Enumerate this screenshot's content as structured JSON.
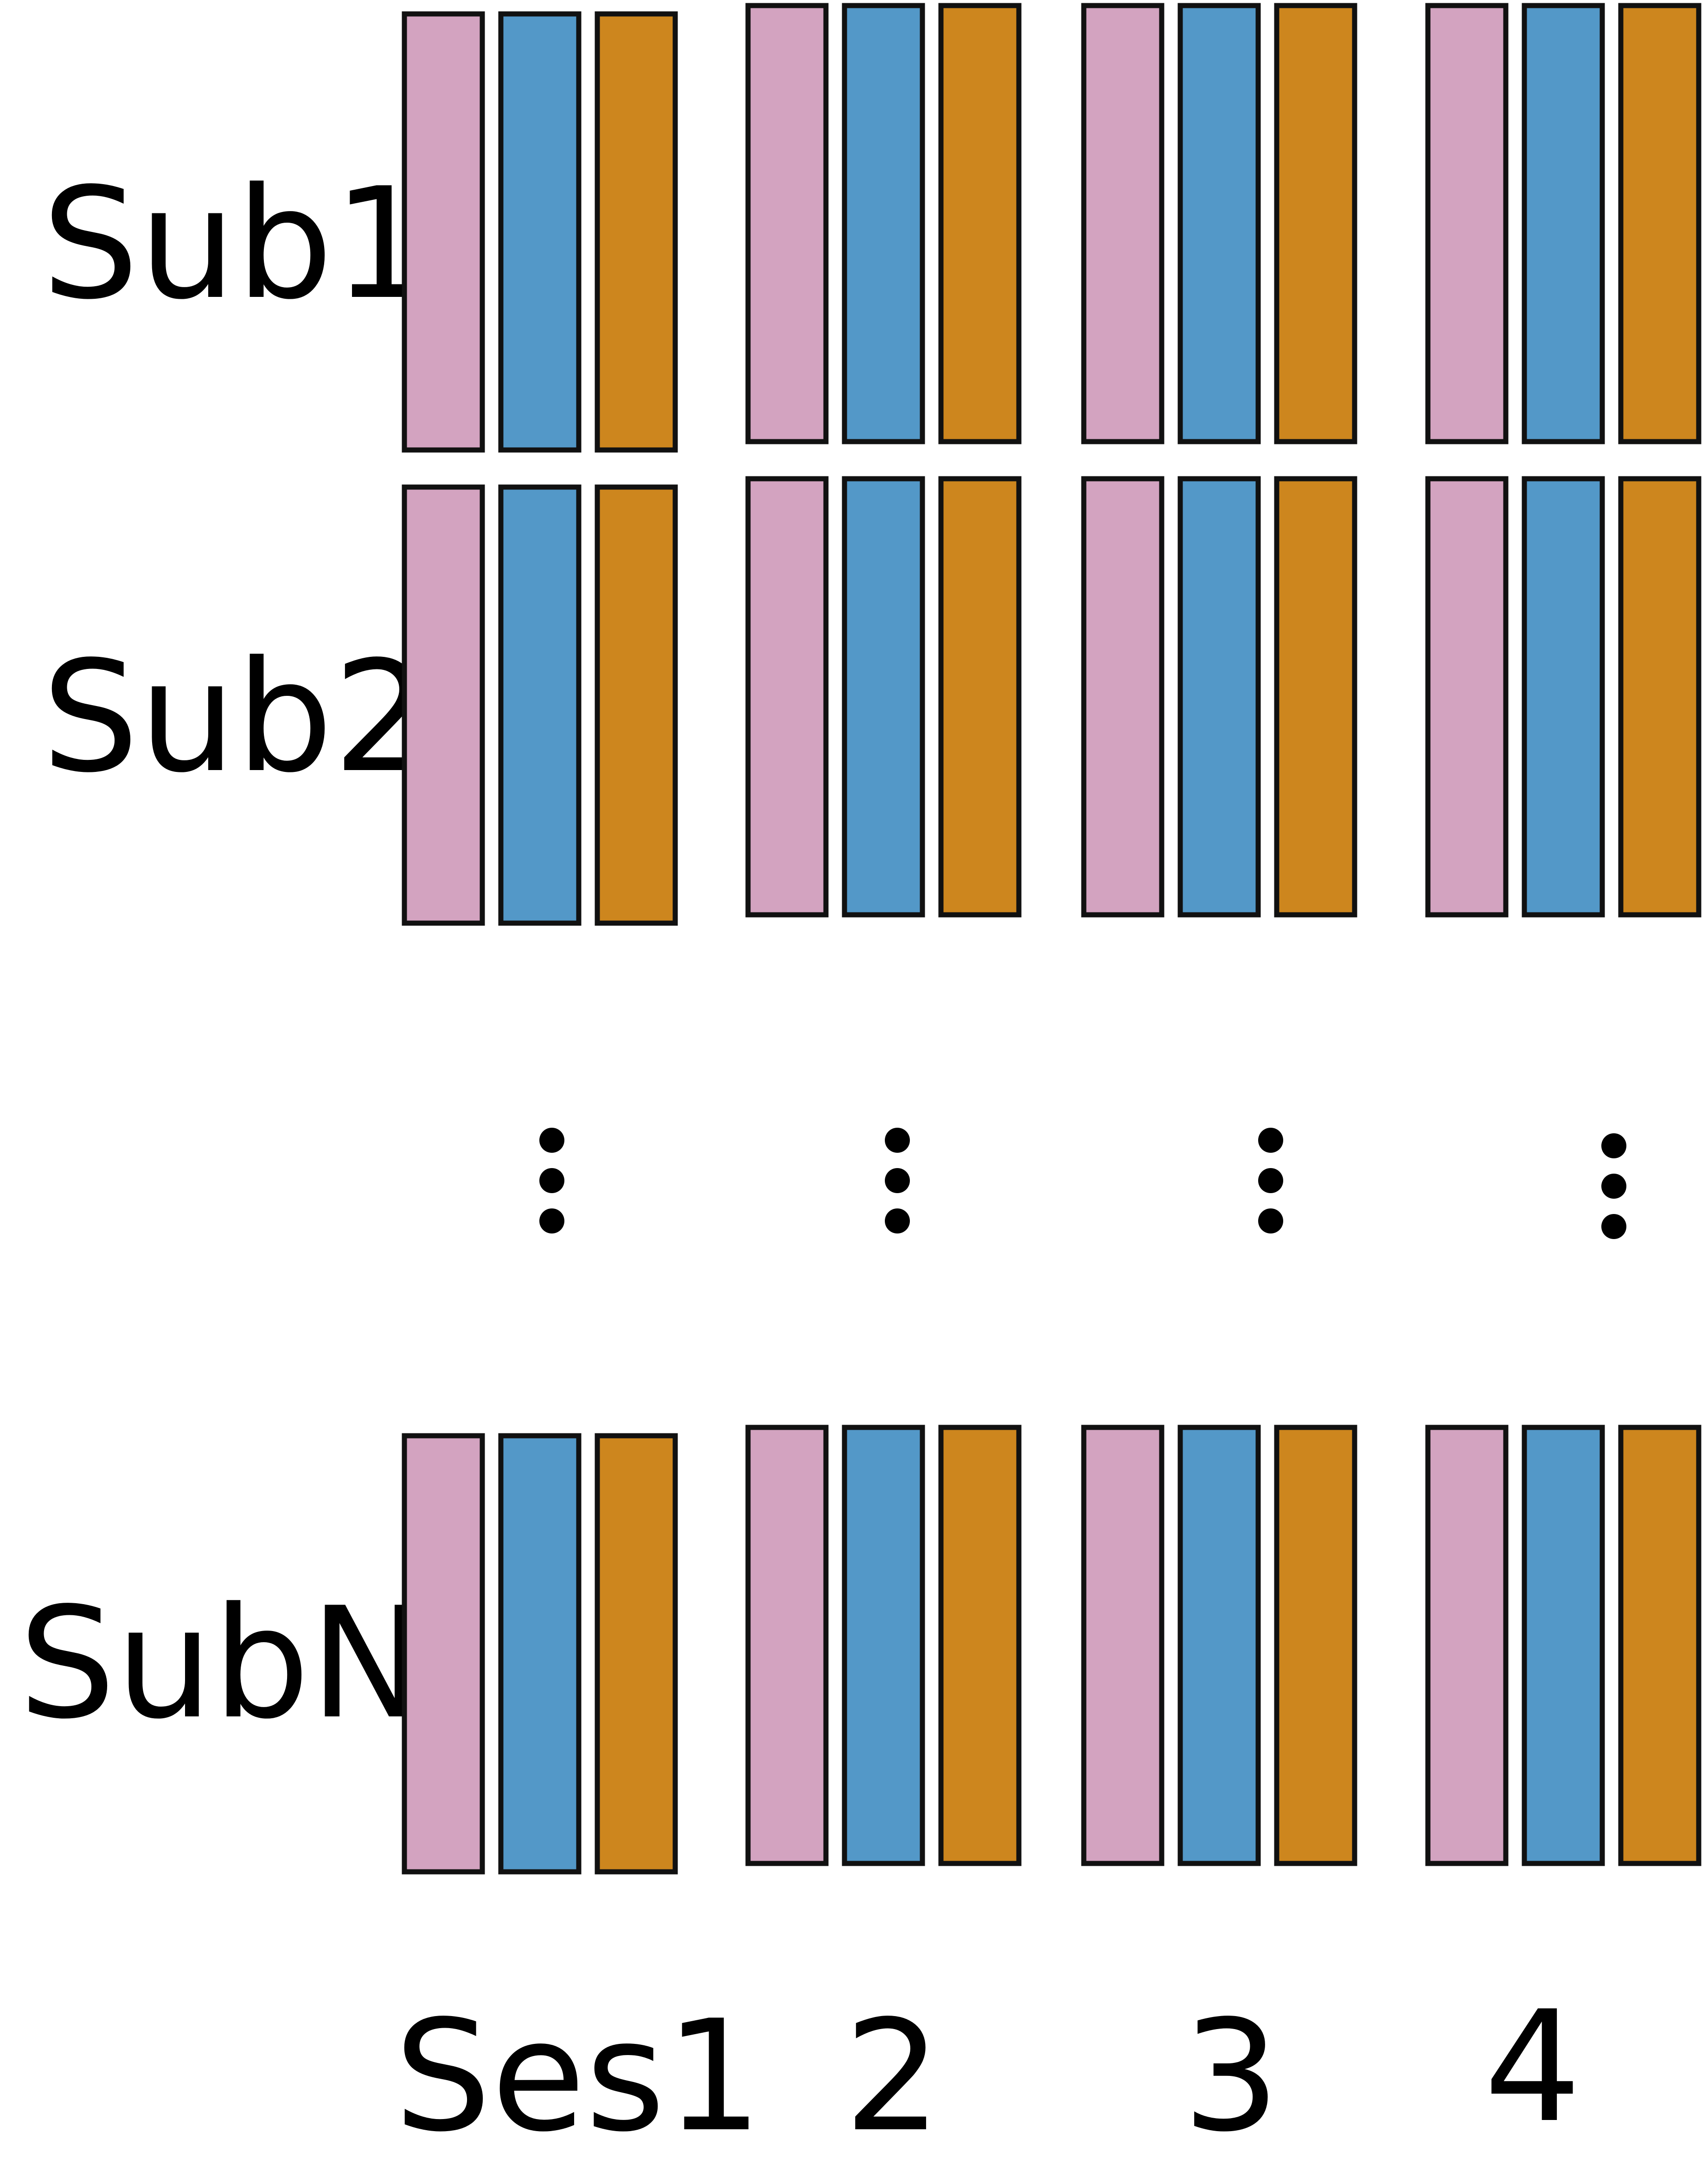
{
  "diagram": {
    "subjects": [
      {
        "label": "Sub1"
      },
      {
        "label": "Sub2"
      },
      {
        "label": "SubN"
      }
    ],
    "sessions": [
      {
        "label": "Ses1"
      },
      {
        "label": "2"
      },
      {
        "label": "3"
      },
      {
        "label": "4"
      }
    ],
    "runs_per_session": 3,
    "run_colors": [
      "#d3a3c0",
      "#5398c8",
      "#cd861e"
    ],
    "stroke_color": "#111111",
    "ellipsis": "vertical-dots"
  }
}
